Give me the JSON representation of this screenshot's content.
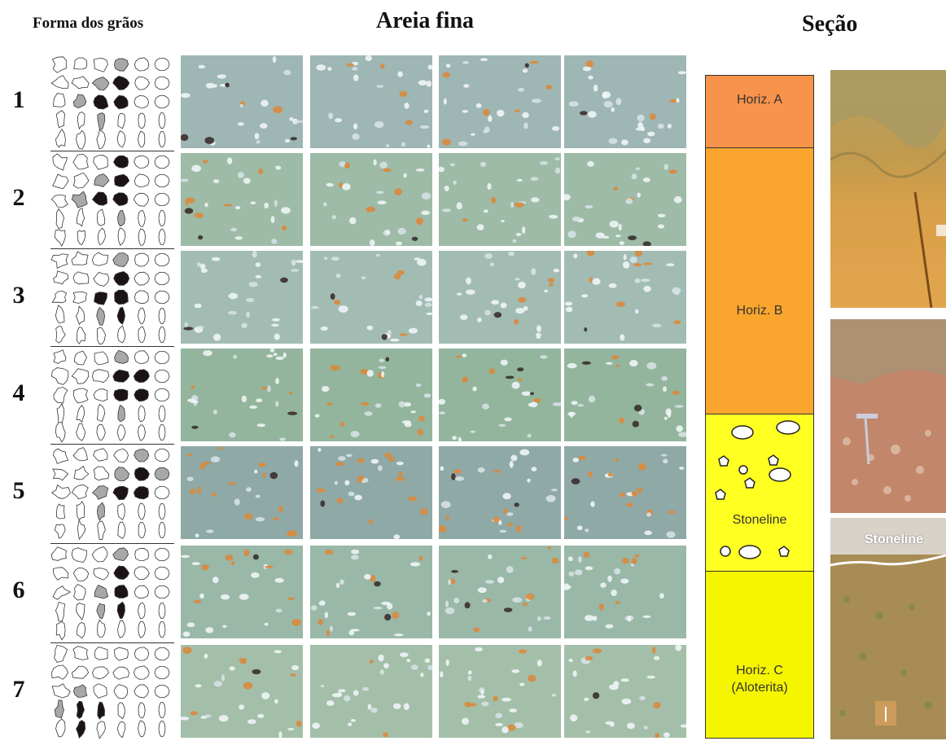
{
  "headers": {
    "grain_shape": "Forma dos grãos",
    "fine_sand": "Areia fina",
    "section": "Seção"
  },
  "rows": [
    {
      "number": "1"
    },
    {
      "number": "2"
    },
    {
      "number": "3"
    },
    {
      "number": "4"
    },
    {
      "number": "5"
    },
    {
      "number": "6"
    },
    {
      "number": "7"
    }
  ],
  "soil_profile": {
    "horizon_a": "Horiz. A",
    "horizon_b": "Horiz. B",
    "stoneline": "Stoneline",
    "horizon_c_line1": "Horiz. C",
    "horizon_c_line2": "(Aloterita)",
    "colors": {
      "horizon_a": "#f7934a",
      "horizon_b": "#f9a52e",
      "stoneline": "#ffff22",
      "horizon_c": "#f5f500"
    }
  },
  "field_photos": {
    "stoneline_label": "Stoneline"
  },
  "shape_shading": [
    {
      "filled": [
        [
          0,
          3
        ],
        [
          1,
          2
        ],
        [
          1,
          3
        ],
        [
          2,
          1
        ],
        [
          2,
          2
        ],
        [
          2,
          3
        ],
        [
          3,
          2
        ]
      ],
      "dark": [
        [
          1,
          3
        ],
        [
          2,
          2
        ],
        [
          2,
          3
        ]
      ]
    },
    {
      "filled": [
        [
          0,
          3
        ],
        [
          1,
          2
        ],
        [
          1,
          3
        ],
        [
          2,
          1
        ],
        [
          2,
          2
        ],
        [
          3,
          3
        ]
      ],
      "dark": [
        [
          0,
          3
        ],
        [
          1,
          3
        ],
        [
          2,
          2
        ],
        [
          2,
          3
        ]
      ]
    },
    {
      "filled": [
        [
          0,
          3
        ],
        [
          1,
          3
        ],
        [
          2,
          2
        ],
        [
          2,
          3
        ],
        [
          3,
          2
        ],
        [
          3,
          3
        ]
      ],
      "dark": [
        [
          1,
          3
        ],
        [
          2,
          2
        ],
        [
          2,
          3
        ],
        [
          3,
          3
        ]
      ]
    },
    {
      "filled": [
        [
          0,
          3
        ],
        [
          1,
          3
        ],
        [
          1,
          4
        ],
        [
          2,
          3
        ],
        [
          2,
          4
        ],
        [
          3,
          3
        ]
      ],
      "dark": [
        [
          1,
          3
        ],
        [
          1,
          4
        ],
        [
          2,
          3
        ],
        [
          2,
          4
        ]
      ]
    },
    {
      "filled": [
        [
          0,
          4
        ],
        [
          1,
          3
        ],
        [
          1,
          4
        ],
        [
          1,
          5
        ],
        [
          2,
          2
        ],
        [
          2,
          3
        ],
        [
          2,
          4
        ],
        [
          3,
          2
        ]
      ],
      "dark": [
        [
          1,
          4
        ],
        [
          2,
          3
        ],
        [
          2,
          4
        ]
      ]
    },
    {
      "filled": [
        [
          0,
          3
        ],
        [
          1,
          3
        ],
        [
          2,
          2
        ],
        [
          2,
          3
        ],
        [
          3,
          2
        ],
        [
          3,
          3
        ]
      ],
      "dark": [
        [
          1,
          3
        ],
        [
          2,
          3
        ],
        [
          3,
          3
        ]
      ]
    },
    {
      "filled": [
        [
          2,
          1
        ],
        [
          3,
          0
        ],
        [
          3,
          1
        ],
        [
          3,
          2
        ],
        [
          4,
          1
        ]
      ],
      "dark": [
        [
          3,
          1
        ],
        [
          3,
          2
        ],
        [
          4,
          1
        ]
      ]
    }
  ]
}
